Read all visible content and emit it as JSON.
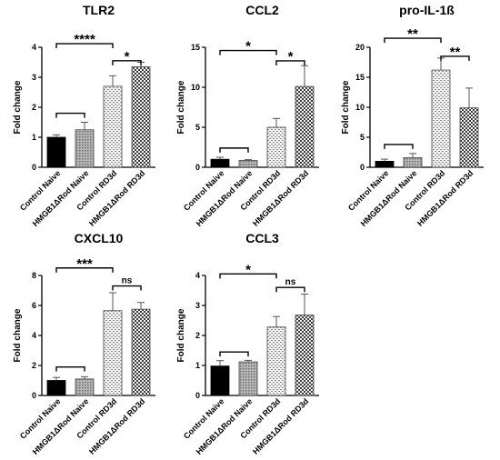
{
  "chart_data": [
    {
      "type": "bar",
      "title": "TLR2",
      "ylabel": "Fold change",
      "categories": [
        "Control Naive",
        "HMGB1ΔRod Naive",
        "Control RD3d",
        "HMGB1ΔRod RD3d"
      ],
      "values": [
        1.0,
        1.25,
        2.7,
        3.35
      ],
      "errors": [
        0.08,
        0.25,
        0.35,
        0.15
      ],
      "ylim": [
        0,
        4
      ],
      "yticks": [
        0,
        1,
        2,
        3,
        4
      ],
      "fills": [
        "solid",
        "dots",
        "dashes",
        "checker"
      ],
      "significance": [
        {
          "label": "****",
          "from": 0,
          "to": 2,
          "level": 4.12
        },
        {
          "label": "*",
          "from": 2,
          "to": 3,
          "level": 3.55
        },
        {
          "label": "",
          "from": 0,
          "to": 1,
          "level": 1.8
        }
      ]
    },
    {
      "type": "bar",
      "title": "CCL2",
      "ylabel": "Fold change",
      "categories": [
        "Control Naive",
        "HMGB1ΔRod Naive",
        "Control RD3d",
        "HMGB1ΔRod RD3d"
      ],
      "values": [
        1.0,
        0.85,
        5.0,
        10.1
      ],
      "errors": [
        0.25,
        0.1,
        1.1,
        2.6
      ],
      "ylim": [
        0,
        15
      ],
      "yticks": [
        0,
        5,
        10,
        15
      ],
      "fills": [
        "solid",
        "dots",
        "dashes",
        "checker"
      ],
      "significance": [
        {
          "label": "*",
          "from": 0,
          "to": 2,
          "level": 14.6
        },
        {
          "label": "*",
          "from": 2,
          "to": 3,
          "level": 13.3
        },
        {
          "label": "",
          "from": 0,
          "to": 1,
          "level": 2.4
        }
      ]
    },
    {
      "type": "bar",
      "title": "pro-IL-1ß",
      "ylabel": "Fold change",
      "categories": [
        "Control Naive",
        "HMGB1ΔRod Naive",
        "Control RD3d",
        "HMGB1ΔRod RD3d"
      ],
      "values": [
        1.0,
        1.6,
        16.2,
        9.9
      ],
      "errors": [
        0.35,
        0.7,
        2.0,
        3.3
      ],
      "ylim": [
        0,
        20
      ],
      "yticks": [
        0,
        5,
        10,
        15,
        20
      ],
      "fills": [
        "solid",
        "dots",
        "dashes",
        "checker"
      ],
      "significance": [
        {
          "label": "**",
          "from": 0,
          "to": 2,
          "level": 21.5
        },
        {
          "label": "**",
          "from": 2,
          "to": 3,
          "level": 18.5
        },
        {
          "label": "",
          "from": 0,
          "to": 1,
          "level": 3.8
        }
      ]
    },
    {
      "type": "bar",
      "title": "CXCL10",
      "ylabel": "Fold change",
      "categories": [
        "Control Naive",
        "HMGB1ΔRod Naive",
        "Control RD3d",
        "HMGB1ΔRod RD3d"
      ],
      "values": [
        1.0,
        1.1,
        5.65,
        5.75
      ],
      "errors": [
        0.2,
        0.15,
        1.2,
        0.45
      ],
      "ylim": [
        0,
        8
      ],
      "yticks": [
        0,
        2,
        4,
        6,
        8
      ],
      "fills": [
        "solid",
        "dots",
        "dashes",
        "checker"
      ],
      "significance": [
        {
          "label": "***",
          "from": 0,
          "to": 2,
          "level": 8.5
        },
        {
          "label": "ns",
          "from": 2,
          "to": 3,
          "level": 7.3
        },
        {
          "label": "",
          "from": 0,
          "to": 1,
          "level": 1.9
        }
      ]
    },
    {
      "type": "bar",
      "title": "CCL3",
      "ylabel": "Fold change",
      "categories": [
        "Control Naive",
        "HMGB1ΔRod Naive",
        "Control RD3d",
        "HMGB1ΔRod RD3d"
      ],
      "values": [
        0.98,
        1.12,
        2.28,
        2.68
      ],
      "errors": [
        0.18,
        0.05,
        0.35,
        0.7
      ],
      "ylim": [
        0,
        4
      ],
      "yticks": [
        0,
        1,
        2,
        3,
        4
      ],
      "fills": [
        "solid",
        "dots",
        "dashes",
        "checker"
      ],
      "significance": [
        {
          "label": "*",
          "from": 0,
          "to": 2,
          "level": 4.05
        },
        {
          "label": "ns",
          "from": 2,
          "to": 3,
          "level": 3.6
        },
        {
          "label": "",
          "from": 0,
          "to": 1,
          "level": 1.45
        }
      ]
    }
  ]
}
